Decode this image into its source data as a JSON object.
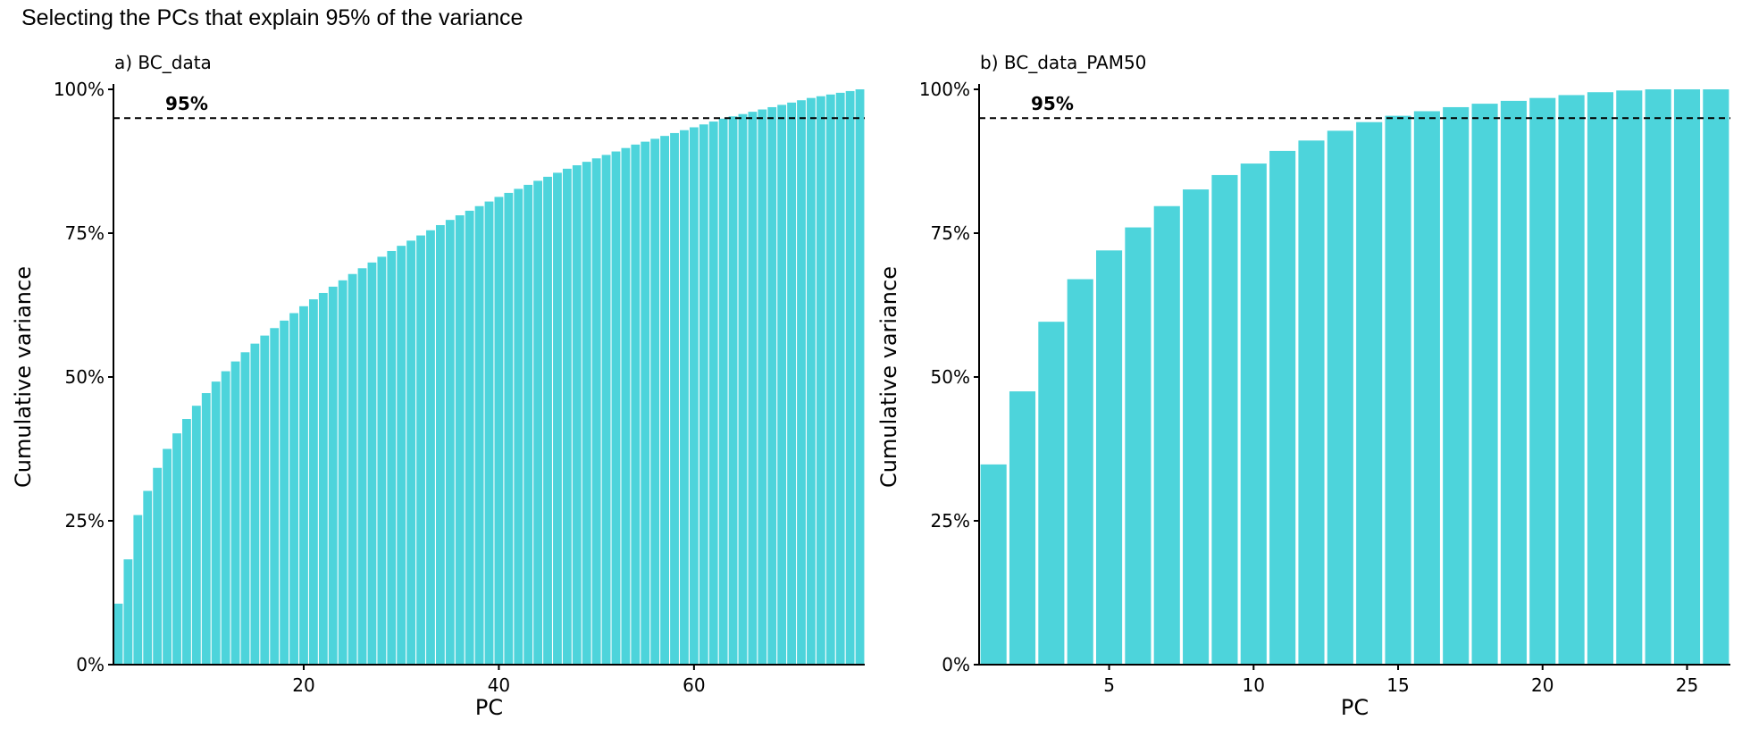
{
  "title": "Selecting the PCs that explain 95% of the variance",
  "colors": {
    "bar": "#4DD4DB",
    "axis": "#000000",
    "threshold": "#000000"
  },
  "chart_data": [
    {
      "type": "bar",
      "subtitle": "a) BC_data",
      "xlabel": "PC",
      "ylabel": "Cumulative variance",
      "xlim": [
        0.5,
        77.5
      ],
      "ylim": [
        0,
        1
      ],
      "xticks": [
        20,
        40,
        60
      ],
      "yticks": [
        0,
        0.25,
        0.5,
        0.75,
        1
      ],
      "ytick_labels": [
        "0%",
        "25%",
        "50%",
        "75%",
        "100%"
      ],
      "grid": false,
      "threshold": {
        "value": 0.95,
        "label": "95%"
      },
      "x": [
        1,
        2,
        3,
        4,
        5,
        6,
        7,
        8,
        9,
        10,
        11,
        12,
        13,
        14,
        15,
        16,
        17,
        18,
        19,
        20,
        21,
        22,
        23,
        24,
        25,
        26,
        27,
        28,
        29,
        30,
        31,
        32,
        33,
        34,
        35,
        36,
        37,
        38,
        39,
        40,
        41,
        42,
        43,
        44,
        45,
        46,
        47,
        48,
        49,
        50,
        51,
        52,
        53,
        54,
        55,
        56,
        57,
        58,
        59,
        60,
        61,
        62,
        63,
        64,
        65,
        66,
        67,
        68,
        69,
        70,
        71,
        72,
        73,
        74,
        75,
        76,
        77
      ],
      "values": [
        0.106,
        0.183,
        0.26,
        0.302,
        0.342,
        0.375,
        0.402,
        0.427,
        0.45,
        0.472,
        0.492,
        0.51,
        0.527,
        0.543,
        0.558,
        0.572,
        0.585,
        0.598,
        0.611,
        0.623,
        0.635,
        0.646,
        0.657,
        0.668,
        0.679,
        0.689,
        0.699,
        0.709,
        0.719,
        0.728,
        0.737,
        0.746,
        0.755,
        0.764,
        0.773,
        0.781,
        0.789,
        0.797,
        0.805,
        0.813,
        0.82,
        0.827,
        0.834,
        0.841,
        0.848,
        0.855,
        0.862,
        0.868,
        0.874,
        0.88,
        0.886,
        0.892,
        0.898,
        0.904,
        0.909,
        0.914,
        0.919,
        0.924,
        0.929,
        0.934,
        0.939,
        0.944,
        0.949,
        0.953,
        0.957,
        0.961,
        0.965,
        0.969,
        0.973,
        0.977,
        0.981,
        0.985,
        0.988,
        0.991,
        0.994,
        0.997,
        1.0
      ]
    },
    {
      "type": "bar",
      "subtitle": "b) BC_data_PAM50",
      "xlabel": "PC",
      "ylabel": "Cumulative variance",
      "xlim": [
        0.5,
        26.5
      ],
      "ylim": [
        0,
        1
      ],
      "xticks": [
        5,
        10,
        15,
        20,
        25
      ],
      "yticks": [
        0,
        0.25,
        0.5,
        0.75,
        1
      ],
      "ytick_labels": [
        "0%",
        "25%",
        "50%",
        "75%",
        "100%"
      ],
      "grid": false,
      "threshold": {
        "value": 0.95,
        "label": "95%"
      },
      "x": [
        1,
        2,
        3,
        4,
        5,
        6,
        7,
        8,
        9,
        10,
        11,
        12,
        13,
        14,
        15,
        16,
        17,
        18,
        19,
        20,
        21,
        22,
        23,
        24,
        25,
        26
      ],
      "values": [
        0.348,
        0.475,
        0.596,
        0.67,
        0.72,
        0.76,
        0.797,
        0.826,
        0.851,
        0.871,
        0.893,
        0.911,
        0.928,
        0.943,
        0.954,
        0.962,
        0.969,
        0.975,
        0.98,
        0.985,
        0.99,
        0.995,
        0.998,
        1.0,
        1.0,
        1.0
      ]
    }
  ]
}
